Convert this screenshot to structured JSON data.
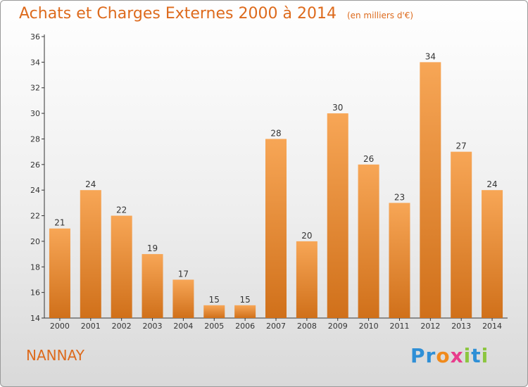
{
  "header": {
    "title": "Achats et Charges Externes 2000 à 2014",
    "unit": "(en milliers d'€)"
  },
  "footer": {
    "town": "NANNAY",
    "brand_letters": [
      "P",
      "r",
      "o",
      "x",
      "i",
      "t",
      "i"
    ],
    "brand_colors": [
      "#2e8fd6",
      "#2e8fd6",
      "#f08a1c",
      "#e83c8c",
      "#8cc63f",
      "#2e8fd6",
      "#8cc63f"
    ]
  },
  "colors": {
    "bar_top": "#f7a656",
    "bar_bottom": "#d0701a",
    "text": "#dd6a1c"
  },
  "chart_data": {
    "type": "bar",
    "title": "Achats et Charges Externes 2000 à 2014",
    "xlabel": "",
    "ylabel": "",
    "categories": [
      "2000",
      "2001",
      "2002",
      "2003",
      "2004",
      "2005",
      "2006",
      "2007",
      "2008",
      "2009",
      "2010",
      "2011",
      "2012",
      "2013",
      "2014"
    ],
    "values": [
      21,
      24,
      22,
      19,
      17,
      15,
      15,
      28,
      20,
      30,
      26,
      23,
      34,
      27,
      24
    ],
    "ylim": [
      14,
      36
    ],
    "yticks": [
      14,
      16,
      18,
      20,
      22,
      24,
      26,
      28,
      30,
      32,
      34,
      36
    ],
    "grid": false,
    "legend": "none"
  }
}
